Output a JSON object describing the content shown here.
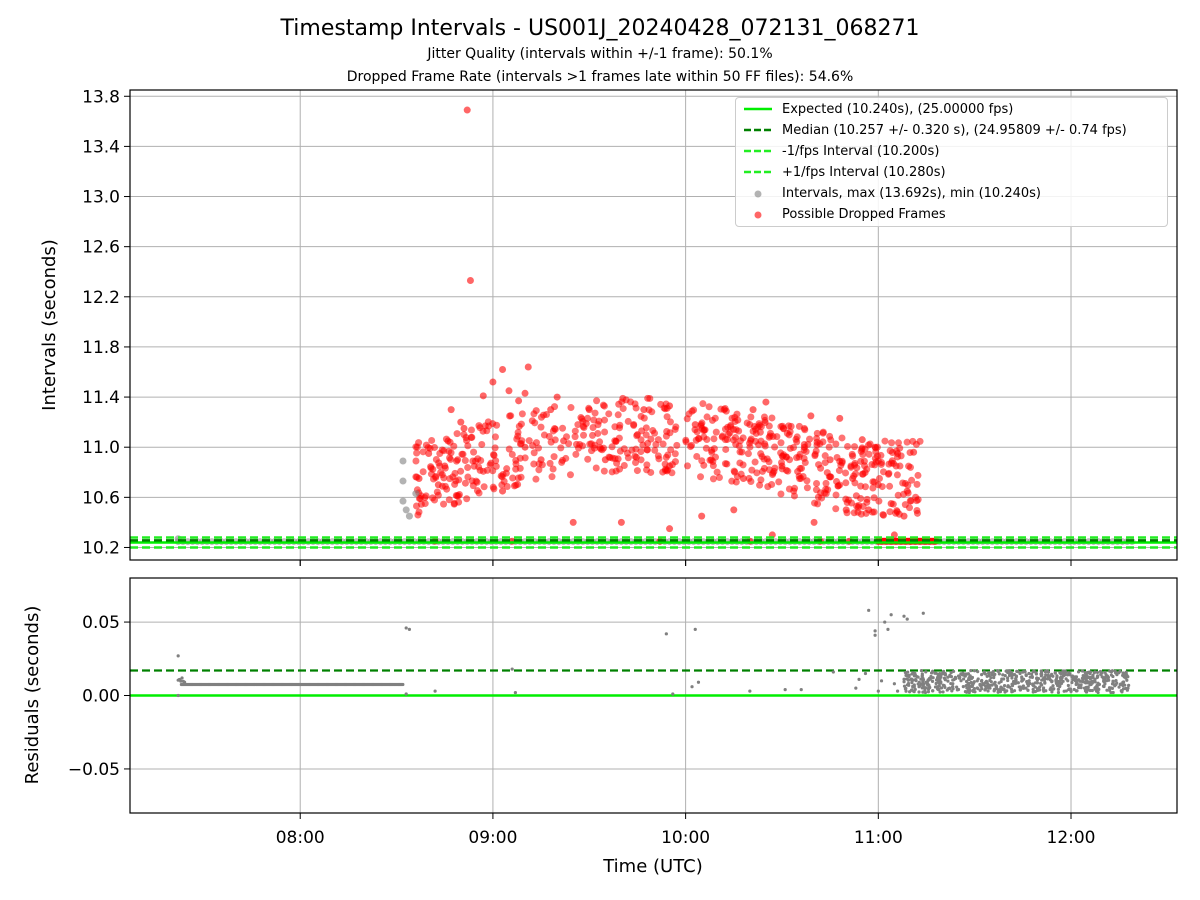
{
  "title": "Timestamp Intervals - US001J_20240428_072131_068271",
  "subtitle_1": "Jitter Quality (intervals within +/-1 frame): 50.1%",
  "subtitle_2": "Dropped Frame Rate (intervals >1 frames late within 50 FF files): 54.6%",
  "colors": {
    "expected": "#00ee00",
    "median": "#008000",
    "fps_bounds": "#22ee22",
    "intervals": "#808080",
    "dropped": "#ff0000",
    "grid": "#b0b0b0"
  },
  "legend": {
    "items": [
      {
        "label": "Expected (10.240s), (25.00000 fps)",
        "symbol": "solid-line",
        "color": "#00ee00"
      },
      {
        "label": "Median (10.257 +/- 0.320 s), (24.95809 +/- 0.74 fps)",
        "symbol": "dashed-line",
        "color": "#008000"
      },
      {
        "label": "-1/fps Interval (10.200s)",
        "symbol": "dashed-line",
        "color": "#22ee22"
      },
      {
        "label": "+1/fps Interval (10.280s)",
        "symbol": "dashed-line",
        "color": "#22ee22"
      },
      {
        "label": "Intervals, max (13.692s), min (10.240s)",
        "symbol": "dot",
        "color": "#808080"
      },
      {
        "label": "Possible Dropped Frames",
        "symbol": "dot",
        "color": "#ff0000"
      }
    ]
  },
  "chart_data": [
    {
      "type": "scatter",
      "ylabel": "Intervals (seconds)",
      "xlabel": "",
      "xlim": [
        "07:07",
        "12:33"
      ],
      "ylim": [
        10.1,
        13.85
      ],
      "x_ticks": [
        "08:00",
        "09:00",
        "10:00",
        "11:00",
        "12:00"
      ],
      "y_ticks": [
        "10.2",
        "10.6",
        "11.0",
        "11.4",
        "11.8",
        "12.2",
        "12.6",
        "13.0",
        "13.4",
        "13.8"
      ],
      "grid": true,
      "legend_position": "top-right",
      "reference_lines": [
        {
          "name": "Expected",
          "y": 10.24,
          "style": "solid"
        },
        {
          "name": "Median",
          "y": 10.257,
          "style": "dashed"
        },
        {
          "name": "-1/fps Interval",
          "y": 10.2,
          "style": "dashed"
        },
        {
          "name": "+1/fps Interval",
          "y": 10.28,
          "style": "dashed"
        }
      ],
      "baseline_band": {
        "series": "Intervals",
        "x_range": [
          "07:22",
          "12:20"
        ],
        "y": 10.247
      },
      "series": [
        {
          "name": "Intervals",
          "points": [
            [
              "07:22",
              10.27
            ],
            [
              "08:32",
              10.89
            ],
            [
              "08:32",
              10.73
            ],
            [
              "08:32",
              10.57
            ],
            [
              "08:33",
              10.5
            ],
            [
              "08:34",
              10.45
            ],
            [
              "08:36",
              10.63
            ]
          ]
        },
        {
          "name": "Possible Dropped Frames",
          "points": [
            [
              "08:52",
              13.69
            ],
            [
              "08:53",
              12.33
            ],
            [
              "09:03",
              11.62
            ],
            [
              "09:11",
              11.64
            ],
            [
              "09:00",
              11.52
            ],
            [
              "09:05",
              11.45
            ],
            [
              "09:10",
              11.43
            ],
            [
              "09:20",
              11.4
            ],
            [
              "08:57",
              11.41
            ],
            [
              "09:08",
              11.37
            ],
            [
              "09:18",
              11.3
            ],
            [
              "09:30",
              11.3
            ],
            [
              "09:47",
              11.3
            ],
            [
              "09:55",
              11.33
            ],
            [
              "10:03",
              11.18
            ],
            [
              "10:12",
              11.3
            ],
            [
              "10:21",
              11.3
            ],
            [
              "10:25",
              11.36
            ],
            [
              "10:39",
              11.25
            ],
            [
              "10:48",
              11.23
            ],
            [
              "10:55",
              11.06
            ],
            [
              "10:59",
              11.0
            ],
            [
              "11:06",
              10.95
            ],
            [
              "11:11",
              10.96
            ],
            [
              "08:47",
              11.3
            ],
            [
              "08:50",
              11.2
            ],
            [
              "09:03",
              10.65
            ],
            [
              "09:25",
              10.4
            ],
            [
              "09:40",
              10.4
            ],
            [
              "09:55",
              10.35
            ],
            [
              "10:05",
              10.45
            ],
            [
              "10:15",
              10.5
            ],
            [
              "10:27",
              10.3
            ],
            [
              "10:40",
              10.4
            ],
            [
              "10:50",
              10.5
            ],
            [
              "10:57",
              10.5
            ],
            [
              "11:05",
              10.3
            ],
            [
              "11:08",
              10.45
            ],
            [
              "11:09",
              10.65
            ],
            [
              "11:04",
              10.55
            ],
            [
              "08:37",
              10.75
            ],
            [
              "08:40",
              10.95
            ],
            [
              "08:43",
              10.7
            ],
            [
              "08:45",
              10.85
            ],
            [
              "08:46",
              11.05
            ],
            [
              "08:49",
              10.9
            ],
            [
              "08:51",
              11.15
            ],
            [
              "09:10",
              11.0
            ],
            [
              "09:15",
              10.9
            ],
            [
              "09:22",
              11.05
            ],
            [
              "09:35",
              10.9
            ],
            [
              "09:45",
              11.1
            ],
            [
              "09:55",
              10.85
            ],
            [
              "10:08",
              10.9
            ],
            [
              "10:18",
              10.75
            ],
            [
              "10:30",
              10.85
            ],
            [
              "10:37",
              11.0
            ],
            [
              "10:45",
              10.9
            ],
            [
              "10:52",
              10.75
            ],
            [
              "11:00",
              10.7
            ],
            [
              "08:42",
              10.25
            ],
            [
              "09:06",
              10.25
            ],
            [
              "09:52",
              10.25
            ],
            [
              "10:20",
              10.25
            ],
            [
              "10:42",
              10.25
            ],
            [
              "10:51",
              10.25
            ],
            [
              "11:00",
              10.25
            ],
            [
              "11:10",
              10.25
            ],
            [
              "11:15",
              10.25
            ]
          ]
        }
      ]
    },
    {
      "type": "scatter",
      "ylabel": "Residuals (seconds)",
      "xlabel": "Time (UTC)",
      "xlim": [
        "07:07",
        "12:33"
      ],
      "ylim": [
        -0.08,
        0.08
      ],
      "x_ticks": [
        "08:00",
        "09:00",
        "10:00",
        "11:00",
        "12:00"
      ],
      "y_ticks": [
        "0.05",
        "0.00",
        "−0.05"
      ],
      "grid": true,
      "reference_lines": [
        {
          "name": "Expected",
          "y": 0.0,
          "style": "solid"
        },
        {
          "name": "Median",
          "y": 0.017,
          "style": "dashed"
        }
      ],
      "baseline_band": {
        "series": "Residuals",
        "x_range": [
          "07:23",
          "08:32"
        ],
        "y": 0.0075
      },
      "scatter_band": {
        "series": "Residuals",
        "x_range": [
          "11:08",
          "12:18"
        ],
        "y_range": [
          0.002,
          0.017
        ]
      },
      "series": [
        {
          "name": "Residuals",
          "points": [
            [
              "07:22",
              0.027
            ],
            [
              "07:22",
              0.0
            ],
            [
              "08:33",
              0.046
            ],
            [
              "08:34",
              0.045
            ],
            [
              "08:33",
              0.001
            ],
            [
              "08:42",
              0.003
            ],
            [
              "09:06",
              0.018
            ],
            [
              "09:07",
              0.002
            ],
            [
              "09:54",
              0.042
            ],
            [
              "09:56",
              0.001
            ],
            [
              "10:03",
              0.045
            ],
            [
              "10:02",
              0.006
            ],
            [
              "10:04",
              0.009
            ],
            [
              "10:20",
              0.003
            ],
            [
              "10:31",
              0.004
            ],
            [
              "10:36",
              0.004
            ],
            [
              "10:46",
              0.016
            ],
            [
              "10:53",
              0.005
            ],
            [
              "10:54",
              0.011
            ],
            [
              "10:56",
              0.015
            ],
            [
              "10:59",
              0.044
            ],
            [
              "10:59",
              0.041
            ],
            [
              "11:00",
              0.003
            ],
            [
              "11:01",
              0.01
            ],
            [
              "10:57",
              0.058
            ],
            [
              "11:02",
              0.05
            ],
            [
              "11:03",
              0.045
            ],
            [
              "11:04",
              0.055
            ],
            [
              "11:08",
              0.054
            ],
            [
              "11:09",
              0.052
            ],
            [
              "11:14",
              0.056
            ],
            [
              "11:05",
              0.008
            ],
            [
              "11:06",
              0.003
            ]
          ]
        }
      ]
    }
  ]
}
